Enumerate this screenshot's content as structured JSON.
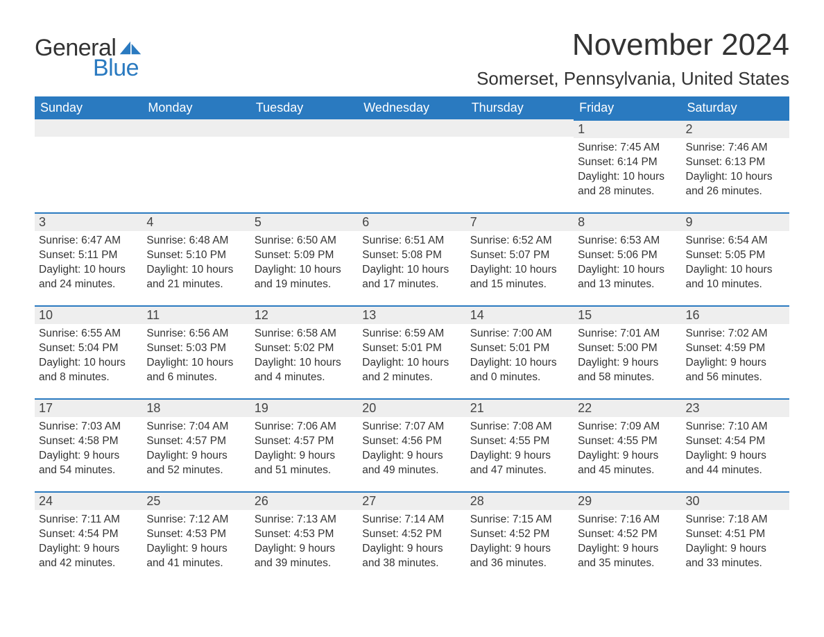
{
  "brand": {
    "text1": "General",
    "text2": "Blue",
    "logo_color": "#2a7ac0"
  },
  "header": {
    "month_title": "November 2024",
    "location": "Somerset, Pennsylvania, United States"
  },
  "colors": {
    "header_bg": "#2a7ac0",
    "header_fg": "#ffffff",
    "daynum_bg": "#eeeeee",
    "daynum_border": "#2a7ac0",
    "text": "#333333",
    "page_bg": "#ffffff"
  },
  "typography": {
    "month_title_pt": 44,
    "location_pt": 26,
    "weekday_pt": 18,
    "daynum_pt": 18,
    "body_pt": 15.5,
    "logo_pt": 34
  },
  "weekdays": [
    "Sunday",
    "Monday",
    "Tuesday",
    "Wednesday",
    "Thursday",
    "Friday",
    "Saturday"
  ],
  "weeks": [
    [
      null,
      null,
      null,
      null,
      null,
      {
        "day": "1",
        "sunrise": "7:45 AM",
        "sunset": "6:14 PM",
        "dl_h": "10",
        "dl_m": "28"
      },
      {
        "day": "2",
        "sunrise": "7:46 AM",
        "sunset": "6:13 PM",
        "dl_h": "10",
        "dl_m": "26"
      }
    ],
    [
      {
        "day": "3",
        "sunrise": "6:47 AM",
        "sunset": "5:11 PM",
        "dl_h": "10",
        "dl_m": "24"
      },
      {
        "day": "4",
        "sunrise": "6:48 AM",
        "sunset": "5:10 PM",
        "dl_h": "10",
        "dl_m": "21"
      },
      {
        "day": "5",
        "sunrise": "6:50 AM",
        "sunset": "5:09 PM",
        "dl_h": "10",
        "dl_m": "19"
      },
      {
        "day": "6",
        "sunrise": "6:51 AM",
        "sunset": "5:08 PM",
        "dl_h": "10",
        "dl_m": "17"
      },
      {
        "day": "7",
        "sunrise": "6:52 AM",
        "sunset": "5:07 PM",
        "dl_h": "10",
        "dl_m": "15"
      },
      {
        "day": "8",
        "sunrise": "6:53 AM",
        "sunset": "5:06 PM",
        "dl_h": "10",
        "dl_m": "13"
      },
      {
        "day": "9",
        "sunrise": "6:54 AM",
        "sunset": "5:05 PM",
        "dl_h": "10",
        "dl_m": "10"
      }
    ],
    [
      {
        "day": "10",
        "sunrise": "6:55 AM",
        "sunset": "5:04 PM",
        "dl_h": "10",
        "dl_m": "8"
      },
      {
        "day": "11",
        "sunrise": "6:56 AM",
        "sunset": "5:03 PM",
        "dl_h": "10",
        "dl_m": "6"
      },
      {
        "day": "12",
        "sunrise": "6:58 AM",
        "sunset": "5:02 PM",
        "dl_h": "10",
        "dl_m": "4"
      },
      {
        "day": "13",
        "sunrise": "6:59 AM",
        "sunset": "5:01 PM",
        "dl_h": "10",
        "dl_m": "2"
      },
      {
        "day": "14",
        "sunrise": "7:00 AM",
        "sunset": "5:01 PM",
        "dl_h": "10",
        "dl_m": "0"
      },
      {
        "day": "15",
        "sunrise": "7:01 AM",
        "sunset": "5:00 PM",
        "dl_h": "9",
        "dl_m": "58"
      },
      {
        "day": "16",
        "sunrise": "7:02 AM",
        "sunset": "4:59 PM",
        "dl_h": "9",
        "dl_m": "56"
      }
    ],
    [
      {
        "day": "17",
        "sunrise": "7:03 AM",
        "sunset": "4:58 PM",
        "dl_h": "9",
        "dl_m": "54"
      },
      {
        "day": "18",
        "sunrise": "7:04 AM",
        "sunset": "4:57 PM",
        "dl_h": "9",
        "dl_m": "52"
      },
      {
        "day": "19",
        "sunrise": "7:06 AM",
        "sunset": "4:57 PM",
        "dl_h": "9",
        "dl_m": "51"
      },
      {
        "day": "20",
        "sunrise": "7:07 AM",
        "sunset": "4:56 PM",
        "dl_h": "9",
        "dl_m": "49"
      },
      {
        "day": "21",
        "sunrise": "7:08 AM",
        "sunset": "4:55 PM",
        "dl_h": "9",
        "dl_m": "47"
      },
      {
        "day": "22",
        "sunrise": "7:09 AM",
        "sunset": "4:55 PM",
        "dl_h": "9",
        "dl_m": "45"
      },
      {
        "day": "23",
        "sunrise": "7:10 AM",
        "sunset": "4:54 PM",
        "dl_h": "9",
        "dl_m": "44"
      }
    ],
    [
      {
        "day": "24",
        "sunrise": "7:11 AM",
        "sunset": "4:54 PM",
        "dl_h": "9",
        "dl_m": "42"
      },
      {
        "day": "25",
        "sunrise": "7:12 AM",
        "sunset": "4:53 PM",
        "dl_h": "9",
        "dl_m": "41"
      },
      {
        "day": "26",
        "sunrise": "7:13 AM",
        "sunset": "4:53 PM",
        "dl_h": "9",
        "dl_m": "39"
      },
      {
        "day": "27",
        "sunrise": "7:14 AM",
        "sunset": "4:52 PM",
        "dl_h": "9",
        "dl_m": "38"
      },
      {
        "day": "28",
        "sunrise": "7:15 AM",
        "sunset": "4:52 PM",
        "dl_h": "9",
        "dl_m": "36"
      },
      {
        "day": "29",
        "sunrise": "7:16 AM",
        "sunset": "4:52 PM",
        "dl_h": "9",
        "dl_m": "35"
      },
      {
        "day": "30",
        "sunrise": "7:18 AM",
        "sunset": "4:51 PM",
        "dl_h": "9",
        "dl_m": "33"
      }
    ]
  ],
  "labels": {
    "sunrise": "Sunrise:",
    "sunset": "Sunset:",
    "daylight_prefix": "Daylight:",
    "hours_word": "hours",
    "and_word": "and",
    "minutes_word": "minutes."
  }
}
